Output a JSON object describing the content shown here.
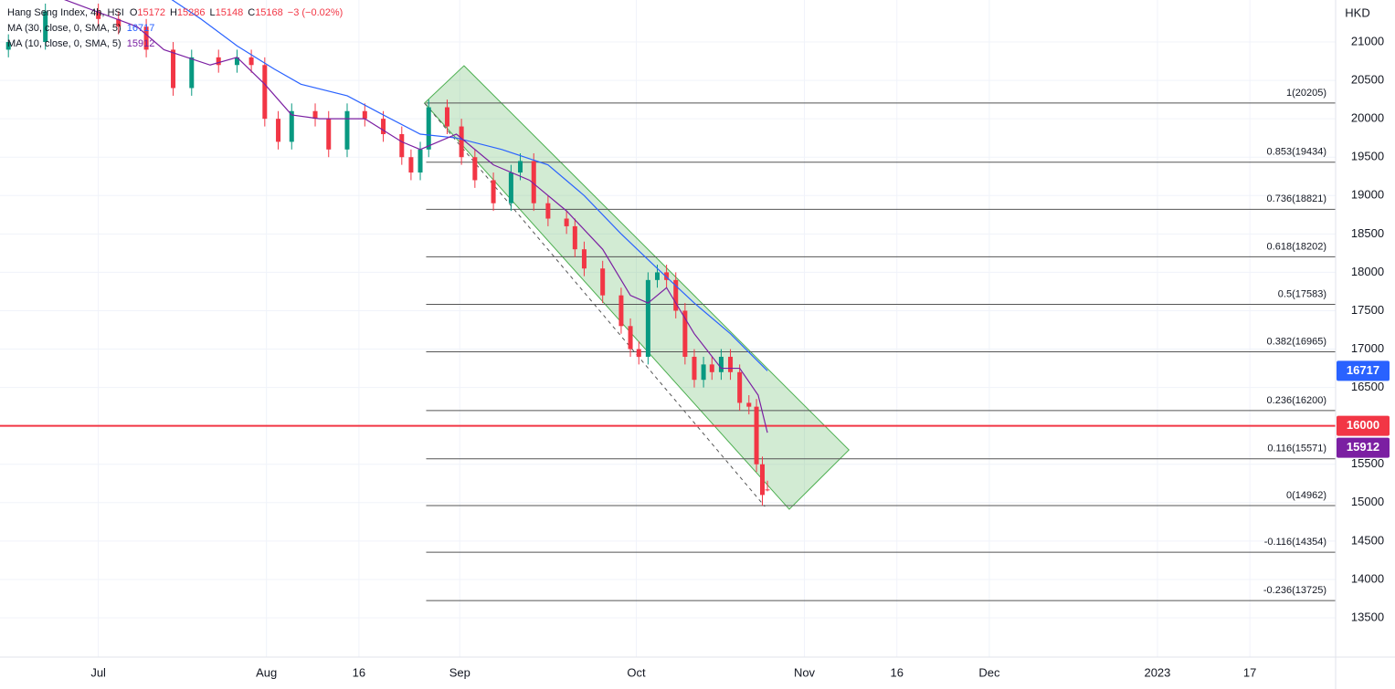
{
  "chart_data": {
    "type": "candlestick",
    "title": "Hang Seng Index, 4h, HSI",
    "currency": "HKD",
    "ohlc_labels": [
      "O",
      "H",
      "L",
      "C"
    ],
    "change": "−3 (−0.02%)",
    "up_color": "#089981",
    "down_color": "#f23645",
    "x": [
      -10.7,
      -6.3,
      0,
      2.4,
      5.7,
      8.9,
      11.1,
      14.3,
      16.5,
      18.2,
      19.8,
      21.4,
      23.0,
      25.8,
      27.4,
      29.6,
      31.7,
      33.9,
      36.1,
      37.2,
      38.3,
      39.3,
      41.5,
      43.2,
      44.8,
      47.0,
      49.1,
      50.2,
      51.8,
      53.5,
      55.7,
      56.7,
      57.8,
      60.0,
      62.2,
      63.3,
      64.3,
      65.4,
      66.5,
      67.6,
      68.7,
      69.8,
      70.9,
      72.0,
      73.0,
      74.1,
      75.2,
      76.3,
      77.4,
      78.3,
      79.0,
      79.6
    ],
    "open": [
      20900,
      21000,
      21400,
      21300,
      21200,
      20900,
      20400,
      20800,
      20700,
      20800,
      20700,
      20000,
      19700,
      20100,
      20000,
      19600,
      20100,
      20000,
      19800,
      19500,
      19300,
      19600,
      20150,
      19900,
      19500,
      19200,
      18900,
      19300,
      19450,
      18900,
      18700,
      18600,
      18300,
      18050,
      17700,
      17300,
      17000,
      16900,
      17900,
      18000,
      17900,
      17500,
      16900,
      16600,
      16800,
      16700,
      16900,
      16700,
      16300,
      16250,
      15500,
      15172
    ],
    "high": [
      21100,
      21500,
      21500,
      21400,
      21300,
      21000,
      20900,
      20900,
      20900,
      20900,
      20800,
      20100,
      20200,
      20200,
      20100,
      20200,
      20200,
      20100,
      19900,
      19600,
      19700,
      20250,
      20250,
      20000,
      19600,
      19300,
      19400,
      19550,
      19550,
      19000,
      18800,
      18700,
      18400,
      18150,
      17800,
      17400,
      17100,
      18000,
      18100,
      18100,
      18000,
      17600,
      17000,
      16900,
      16900,
      17000,
      17000,
      16800,
      16400,
      16350,
      15600,
      15286
    ],
    "low": [
      20800,
      20900,
      21200,
      21100,
      20800,
      20300,
      20300,
      20600,
      20600,
      20600,
      19900,
      19600,
      19600,
      19900,
      19500,
      19500,
      19900,
      19700,
      19400,
      19200,
      19200,
      19500,
      19800,
      19400,
      19100,
      18800,
      18800,
      19200,
      18800,
      18600,
      18500,
      18200,
      17950,
      17600,
      17200,
      16900,
      16800,
      16800,
      17800,
      17800,
      17400,
      16800,
      16500,
      16500,
      16600,
      16600,
      16600,
      16200,
      16150,
      15400,
      14962,
      15148
    ],
    "close": [
      21000,
      21400,
      21300,
      21200,
      20900,
      20400,
      20800,
      20700,
      20800,
      20700,
      20000,
      19700,
      20100,
      20000,
      19600,
      20100,
      20000,
      19800,
      19500,
      19300,
      19600,
      20150,
      19900,
      19500,
      19200,
      18900,
      19300,
      19450,
      18900,
      18700,
      18600,
      18300,
      18050,
      17700,
      17300,
      17000,
      16900,
      17900,
      18000,
      17900,
      17500,
      16900,
      16600,
      16800,
      16700,
      16900,
      16700,
      16300,
      16250,
      15500,
      15100,
      15168
    ],
    "overlays": [
      {
        "name": "MA (30, close, 0, SMA, 5)",
        "color": "#2962ff",
        "x": [
          6.7,
          12.2,
          16.5,
          20.9,
          24.1,
          29.6,
          33.9,
          38.3,
          42.6,
          48.0,
          53.5,
          57.8,
          62.2,
          66.5,
          70.9,
          75.2,
          79.6
        ],
        "values": [
          21700,
          21300,
          20950,
          20650,
          20450,
          20300,
          20050,
          19800,
          19750,
          19600,
          19400,
          19000,
          18500,
          18050,
          17600,
          17200,
          16717
        ]
      },
      {
        "name": "MA (10, close, 0, SMA, 5)",
        "color": "#7b1fa2",
        "x": [
          -5.2,
          4.6,
          7.8,
          13.3,
          16.5,
          19.8,
          23.0,
          26.3,
          31.7,
          36.1,
          38.3,
          42.6,
          47.0,
          51.3,
          55.7,
          60.0,
          63.3,
          65.4,
          67.6,
          70.9,
          74.1,
          76.3,
          78.5,
          79.6
        ],
        "values": [
          21600,
          21200,
          20900,
          20700,
          20800,
          20450,
          20050,
          20000,
          20000,
          19700,
          19600,
          19800,
          19400,
          19200,
          18800,
          18300,
          17700,
          17600,
          17800,
          17200,
          16750,
          16750,
          16400,
          15912
        ]
      }
    ],
    "hline": {
      "value": 16000,
      "color": "#f23645"
    },
    "fib_start_x": 39.0,
    "fib_levels": [
      {
        "value": 20205,
        "label": "1(20205)"
      },
      {
        "value": 19434,
        "label": "0.853(19434)"
      },
      {
        "value": 18821,
        "label": "0.736(18821)"
      },
      {
        "value": 18202,
        "label": "0.618(18202)"
      },
      {
        "value": 17583,
        "label": "0.5(17583)"
      },
      {
        "value": 16965,
        "label": "0.382(16965)"
      },
      {
        "value": 16200,
        "label": "0.236(16200)"
      },
      {
        "value": 15571,
        "label": "0.116(15571)"
      },
      {
        "value": 14962,
        "label": "0(14962)"
      },
      {
        "value": 14354,
        "label": "-0.116(14354)"
      },
      {
        "value": 13725,
        "label": "-0.236(13725)"
      }
    ],
    "channel": {
      "color": "#4caf50",
      "x": [
        38.8,
        43.5,
        89.3,
        82.2
      ],
      "y": [
        20204,
        20691,
        15687,
        14914
      ]
    },
    "trend_line": {
      "x": [
        38.8,
        79.3
      ],
      "y": [
        20204,
        14950
      ]
    },
    "xlim": [
      -11.7,
      147.2
    ],
    "ylim": [
      12989,
      21547
    ],
    "xticks": [
      {
        "value": 0,
        "label": "Jul"
      },
      {
        "value": 20,
        "label": "Aug"
      },
      {
        "value": 31,
        "label": "16"
      },
      {
        "value": 43,
        "label": "Sep"
      },
      {
        "value": 64,
        "label": "Oct"
      },
      {
        "value": 84,
        "label": "Nov"
      },
      {
        "value": 95,
        "label": "16"
      },
      {
        "value": 106,
        "label": "Dec"
      },
      {
        "value": 126,
        "label": "2023"
      },
      {
        "value": 137,
        "label": "17"
      }
    ],
    "yticks": [
      13500,
      14000,
      14500,
      15000,
      15500,
      16000,
      16500,
      17000,
      17500,
      18000,
      18500,
      19000,
      19500,
      20000,
      20500,
      21000
    ],
    "grid": true
  }
}
